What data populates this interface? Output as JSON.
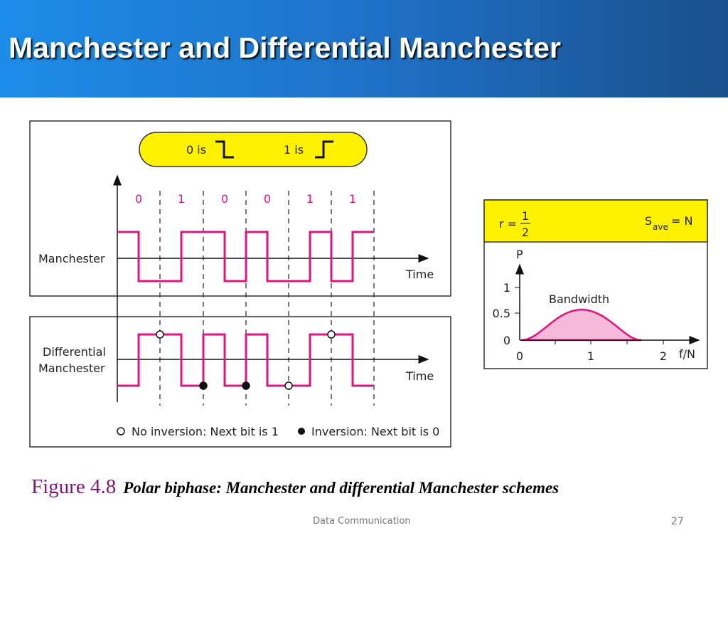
{
  "header": {
    "title": "Manchester and Differential Manchester"
  },
  "diagram": {
    "legend": {
      "zero": "0 is",
      "one": "1 is"
    },
    "bits": [
      "0",
      "1",
      "0",
      "0",
      "1",
      "1"
    ],
    "manchester_label": "Manchester",
    "differential_label": [
      "Differential",
      "Manchester"
    ],
    "time_label": "Time",
    "key": [
      "No inversion: Next bit is 1",
      "Inversion: Next bit is 0"
    ]
  },
  "spectrum": {
    "rate_label": "r =",
    "rate_num": "1",
    "rate_den": "2",
    "s_label": "S",
    "s_sub": "ave",
    "s_eq": "= N",
    "p_label": "P",
    "yticks": [
      "1",
      "0.5",
      "0"
    ],
    "xticks": [
      "0",
      "1",
      "2"
    ],
    "x_label": "f/N",
    "bandwidth_label": "Bandwidth"
  },
  "caption": {
    "number": "Figure 4.8",
    "text": "Polar biphase: Manchester and differential Manchester schemes"
  },
  "footer": {
    "text": "Data Communication",
    "page": "27"
  }
}
